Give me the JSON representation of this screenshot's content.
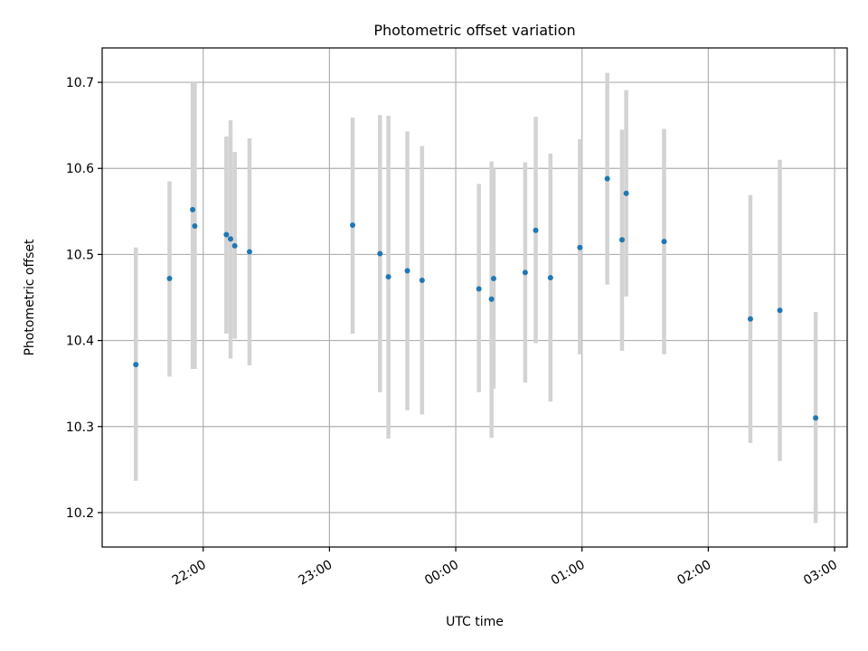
{
  "chart_data": {
    "type": "scatter",
    "title": "Photometric offset variation",
    "xlabel": "UTC time",
    "ylabel": "Photometric offset",
    "x_unit": "UTC time (HH:MM), night crossing midnight",
    "xlim": [
      "21:12",
      "03:06"
    ],
    "ylim": [
      10.16,
      10.74
    ],
    "xticks": [
      "22:00",
      "23:00",
      "00:00",
      "01:00",
      "02:00",
      "03:00"
    ],
    "yticks": [
      10.2,
      10.3,
      10.4,
      10.5,
      10.6,
      10.7
    ],
    "grid": true,
    "colors": {
      "point": "#1f77b4",
      "errorbar": "#d3d3d3"
    },
    "points": [
      {
        "t": "21:28",
        "y": 10.372,
        "lo": 10.237,
        "hi": 10.508
      },
      {
        "t": "21:44",
        "y": 10.472,
        "lo": 10.358,
        "hi": 10.585
      },
      {
        "t": "21:55",
        "y": 10.552,
        "lo": 10.367,
        "hi": 10.7
      },
      {
        "t": "21:56",
        "y": 10.533,
        "lo": 10.367,
        "hi": 10.7
      },
      {
        "t": "22:11",
        "y": 10.523,
        "lo": 10.408,
        "hi": 10.637
      },
      {
        "t": "22:13",
        "y": 10.518,
        "lo": 10.379,
        "hi": 10.656
      },
      {
        "t": "22:15",
        "y": 10.51,
        "lo": 10.402,
        "hi": 10.619
      },
      {
        "t": "22:22",
        "y": 10.503,
        "lo": 10.371,
        "hi": 10.635
      },
      {
        "t": "23:11",
        "y": 10.534,
        "lo": 10.408,
        "hi": 10.659
      },
      {
        "t": "23:24",
        "y": 10.501,
        "lo": 10.34,
        "hi": 10.662
      },
      {
        "t": "23:28",
        "y": 10.474,
        "lo": 10.286,
        "hi": 10.661
      },
      {
        "t": "23:37",
        "y": 10.481,
        "lo": 10.319,
        "hi": 10.643
      },
      {
        "t": "23:44",
        "y": 10.47,
        "lo": 10.314,
        "hi": 10.626
      },
      {
        "t": "00:11",
        "y": 10.46,
        "lo": 10.34,
        "hi": 10.582
      },
      {
        "t": "00:17",
        "y": 10.448,
        "lo": 10.287,
        "hi": 10.608
      },
      {
        "t": "00:18",
        "y": 10.472,
        "lo": 10.344,
        "hi": 10.6
      },
      {
        "t": "00:33",
        "y": 10.479,
        "lo": 10.351,
        "hi": 10.607
      },
      {
        "t": "00:38",
        "y": 10.528,
        "lo": 10.397,
        "hi": 10.66
      },
      {
        "t": "00:45",
        "y": 10.473,
        "lo": 10.329,
        "hi": 10.617
      },
      {
        "t": "00:59",
        "y": 10.508,
        "lo": 10.384,
        "hi": 10.634
      },
      {
        "t": "01:12",
        "y": 10.588,
        "lo": 10.465,
        "hi": 10.711
      },
      {
        "t": "01:19",
        "y": 10.517,
        "lo": 10.388,
        "hi": 10.645
      },
      {
        "t": "01:21",
        "y": 10.571,
        "lo": 10.451,
        "hi": 10.691
      },
      {
        "t": "01:39",
        "y": 10.515,
        "lo": 10.384,
        "hi": 10.646
      },
      {
        "t": "02:20",
        "y": 10.425,
        "lo": 10.281,
        "hi": 10.569
      },
      {
        "t": "02:34",
        "y": 10.435,
        "lo": 10.26,
        "hi": 10.61
      },
      {
        "t": "02:51",
        "y": 10.31,
        "lo": 10.188,
        "hi": 10.433
      }
    ]
  }
}
